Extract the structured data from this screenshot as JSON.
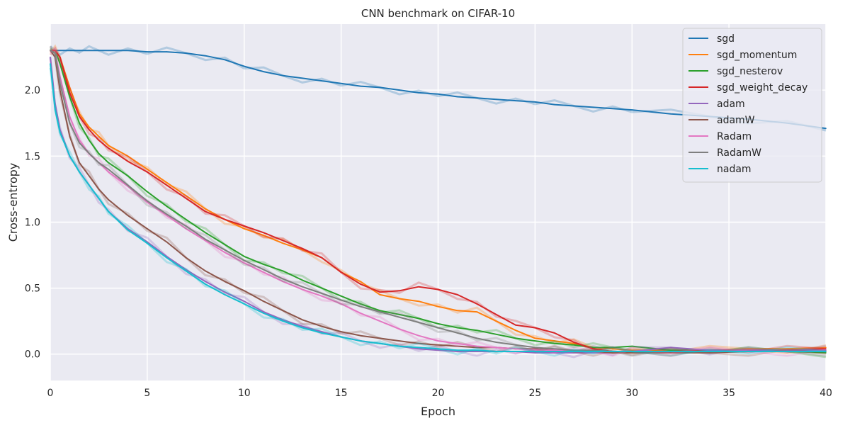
{
  "chart_data": {
    "type": "line",
    "title": "CNN benchmark on CIFAR-10",
    "xlabel": "Epoch",
    "ylabel": "Cross-entropy",
    "xlim": [
      0,
      40
    ],
    "ylim": [
      -0.2,
      2.5
    ],
    "x_ticks": [
      0,
      5,
      10,
      15,
      20,
      25,
      30,
      35,
      40
    ],
    "x_tick_labels": [
      "0",
      "5",
      "10",
      "15",
      "20",
      "25",
      "30",
      "35",
      "40"
    ],
    "y_ticks": [
      0.0,
      0.5,
      1.0,
      1.5,
      2.0
    ],
    "y_tick_labels": [
      "0.0",
      "0.5",
      "1.0",
      "1.5",
      "2.0"
    ],
    "grid": true,
    "legend_position": "top-right",
    "x": [
      0,
      0.25,
      0.5,
      1,
      1.5,
      2,
      2.5,
      3,
      4,
      5,
      6,
      7,
      8,
      9,
      10,
      11,
      12,
      13,
      14,
      15,
      16,
      17,
      18,
      19,
      20,
      21,
      22,
      23,
      24,
      25,
      26,
      27,
      28,
      29,
      30,
      32,
      34,
      36,
      38,
      40
    ],
    "series": [
      {
        "name": "sgd",
        "color": "#1f77b4",
        "values": [
          2.3,
          2.3,
          2.3,
          2.3,
          2.3,
          2.3,
          2.3,
          2.3,
          2.3,
          2.29,
          2.29,
          2.28,
          2.26,
          2.23,
          2.18,
          2.14,
          2.11,
          2.09,
          2.07,
          2.05,
          2.03,
          2.02,
          2.0,
          1.98,
          1.97,
          1.95,
          1.94,
          1.93,
          1.92,
          1.91,
          1.89,
          1.88,
          1.87,
          1.86,
          1.85,
          1.82,
          1.8,
          1.78,
          1.75,
          1.71
        ]
      },
      {
        "name": "sgd_momentum",
        "color": "#ff7f0e",
        "values": [
          2.3,
          2.3,
          2.25,
          2.02,
          1.82,
          1.72,
          1.65,
          1.58,
          1.5,
          1.4,
          1.3,
          1.2,
          1.1,
          1.02,
          0.95,
          0.9,
          0.84,
          0.79,
          0.73,
          0.62,
          0.55,
          0.45,
          0.42,
          0.4,
          0.36,
          0.33,
          0.32,
          0.25,
          0.18,
          0.12,
          0.1,
          0.08,
          0.05,
          0.04,
          0.03,
          0.03,
          0.03,
          0.04,
          0.04,
          0.05
        ]
      },
      {
        "name": "sgd_nesterov",
        "color": "#2ca02c",
        "values": [
          2.3,
          2.3,
          2.2,
          1.95,
          1.75,
          1.62,
          1.52,
          1.45,
          1.35,
          1.23,
          1.12,
          1.02,
          0.92,
          0.83,
          0.74,
          0.68,
          0.63,
          0.56,
          0.5,
          0.44,
          0.38,
          0.33,
          0.3,
          0.27,
          0.23,
          0.2,
          0.18,
          0.15,
          0.12,
          0.1,
          0.08,
          0.07,
          0.05,
          0.05,
          0.06,
          0.03,
          0.03,
          0.02,
          0.02,
          0.01
        ]
      },
      {
        "name": "sgd_weight_decay",
        "color": "#d62728",
        "values": [
          2.3,
          2.3,
          2.25,
          1.98,
          1.8,
          1.7,
          1.62,
          1.56,
          1.46,
          1.38,
          1.28,
          1.18,
          1.08,
          1.02,
          0.97,
          0.92,
          0.86,
          0.8,
          0.73,
          0.62,
          0.53,
          0.47,
          0.48,
          0.51,
          0.49,
          0.45,
          0.38,
          0.3,
          0.22,
          0.2,
          0.16,
          0.09,
          0.04,
          0.02,
          0.02,
          0.02,
          0.03,
          0.03,
          0.03,
          0.04
        ]
      },
      {
        "name": "adam",
        "color": "#9467bd",
        "values": [
          2.25,
          1.9,
          1.7,
          1.5,
          1.38,
          1.28,
          1.18,
          1.08,
          0.95,
          0.85,
          0.74,
          0.64,
          0.55,
          0.47,
          0.4,
          0.32,
          0.26,
          0.21,
          0.17,
          0.13,
          0.1,
          0.08,
          0.06,
          0.04,
          0.03,
          0.02,
          0.02,
          0.02,
          0.02,
          0.01,
          0.01,
          0.01,
          0.01,
          0.01,
          0.02,
          0.05,
          0.03,
          0.03,
          0.03,
          0.03
        ]
      },
      {
        "name": "adamW",
        "color": "#8c564b",
        "values": [
          2.3,
          2.25,
          2.0,
          1.65,
          1.45,
          1.35,
          1.25,
          1.17,
          1.05,
          0.95,
          0.85,
          0.73,
          0.63,
          0.55,
          0.48,
          0.4,
          0.33,
          0.26,
          0.21,
          0.17,
          0.14,
          0.12,
          0.1,
          0.08,
          0.07,
          0.06,
          0.05,
          0.05,
          0.04,
          0.04,
          0.03,
          0.02,
          0.02,
          0.01,
          0.01,
          0.01,
          0.01,
          0.02,
          0.02,
          0.02
        ]
      },
      {
        "name": "Radam",
        "color": "#e377c2",
        "values": [
          2.3,
          2.28,
          2.1,
          1.8,
          1.62,
          1.52,
          1.45,
          1.38,
          1.27,
          1.15,
          1.05,
          0.95,
          0.86,
          0.77,
          0.69,
          0.62,
          0.55,
          0.49,
          0.44,
          0.38,
          0.31,
          0.25,
          0.19,
          0.14,
          0.1,
          0.08,
          0.06,
          0.05,
          0.04,
          0.03,
          0.03,
          0.02,
          0.02,
          0.02,
          0.02,
          0.02,
          0.02,
          0.02,
          0.02,
          0.02
        ]
      },
      {
        "name": "RadamW",
        "color": "#7f7f7f",
        "values": [
          2.3,
          2.28,
          2.05,
          1.75,
          1.6,
          1.52,
          1.45,
          1.4,
          1.28,
          1.16,
          1.06,
          0.97,
          0.87,
          0.79,
          0.71,
          0.64,
          0.57,
          0.51,
          0.46,
          0.41,
          0.36,
          0.32,
          0.28,
          0.24,
          0.2,
          0.16,
          0.12,
          0.09,
          0.07,
          0.05,
          0.04,
          0.03,
          0.03,
          0.02,
          0.02,
          0.02,
          0.02,
          0.02,
          0.02,
          0.02
        ]
      },
      {
        "name": "nadam",
        "color": "#17becf",
        "values": [
          2.2,
          1.85,
          1.68,
          1.5,
          1.38,
          1.28,
          1.18,
          1.08,
          0.94,
          0.84,
          0.73,
          0.63,
          0.53,
          0.45,
          0.38,
          0.31,
          0.25,
          0.2,
          0.16,
          0.13,
          0.1,
          0.08,
          0.06,
          0.05,
          0.04,
          0.03,
          0.03,
          0.02,
          0.02,
          0.02,
          0.02,
          0.02,
          0.02,
          0.02,
          0.02,
          0.02,
          0.02,
          0.02,
          0.02,
          0.02
        ]
      }
    ]
  }
}
